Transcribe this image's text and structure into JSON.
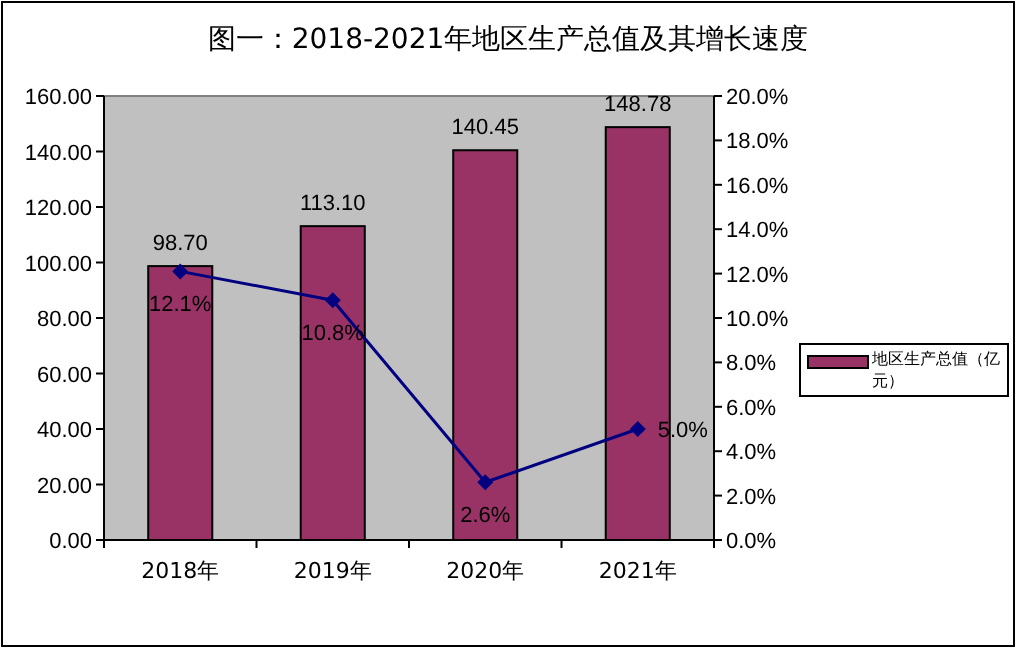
{
  "chart_data": {
    "type": "bar",
    "title": "图一：2018-2021年地区生产总值及其增长速度",
    "categories": [
      "2018年",
      "2019年",
      "2020年",
      "2021年"
    ],
    "series": [
      {
        "name": "地区生产总值（亿元）",
        "color": "#993366",
        "values": [
          98.7,
          113.1,
          140.45,
          148.78
        ],
        "value_labels": [
          "98.70",
          "113.10",
          "140.45",
          "148.78"
        ]
      },
      {
        "type": "line",
        "axis": "y2",
        "color": "#000080",
        "values": [
          12.1,
          10.8,
          2.6,
          5.0
        ],
        "value_labels": [
          "12.1%",
          "10.8%",
          "2.6%",
          "5.0%"
        ],
        "marker": "diamond"
      }
    ],
    "ylim": [
      0,
      160
    ],
    "yticks": [
      {
        "value": 0,
        "label": "0.00"
      },
      {
        "value": 20,
        "label": "20.00"
      },
      {
        "value": 40,
        "label": "40.00"
      },
      {
        "value": 60,
        "label": "60.00"
      },
      {
        "value": 80,
        "label": "80.00"
      },
      {
        "value": 100,
        "label": "100.00"
      },
      {
        "value": 120,
        "label": "120.00"
      },
      {
        "value": 140,
        "label": "140.00"
      },
      {
        "value": 160,
        "label": "160.00"
      }
    ],
    "y2lim": [
      0,
      20
    ],
    "y2ticks": [
      {
        "value": 0,
        "label": "0.0%"
      },
      {
        "value": 2,
        "label": "2.0%"
      },
      {
        "value": 4,
        "label": "4.0%"
      },
      {
        "value": 6,
        "label": "6.0%"
      },
      {
        "value": 8,
        "label": "8.0%"
      },
      {
        "value": 10,
        "label": "10.0%"
      },
      {
        "value": 12,
        "label": "12.0%"
      },
      {
        "value": 14,
        "label": "14.0%"
      },
      {
        "value": 16,
        "label": "16.0%"
      },
      {
        "value": 18,
        "label": "18.0%"
      },
      {
        "value": 20,
        "label": "20.0%"
      }
    ],
    "legend": "right",
    "grid": false
  }
}
